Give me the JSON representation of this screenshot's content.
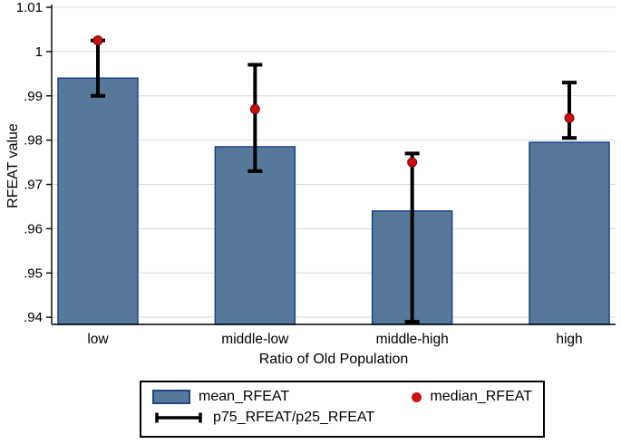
{
  "figure": {
    "background": "#ffffff"
  },
  "chart_data": {
    "type": "bar",
    "title": "",
    "xlabel": "Ratio of Old Population",
    "ylabel": "RFEAT value",
    "categories": [
      "low",
      "middle-low",
      "middle-high",
      "high"
    ],
    "series": [
      {
        "name": "mean_RFEAT",
        "kind": "bar",
        "values": [
          0.994,
          0.9785,
          0.964,
          0.9795
        ]
      },
      {
        "name": "median_RFEAT",
        "kind": "point",
        "values": [
          1.0025,
          0.987,
          0.975,
          0.985
        ]
      },
      {
        "name": "p75_RFEAT/p25_RFEAT",
        "kind": "range",
        "high": [
          1.0025,
          0.997,
          0.977,
          0.993
        ],
        "low": [
          0.99,
          0.973,
          0.939,
          0.9805
        ]
      }
    ],
    "ylim": [
      0.9384,
      1.01
    ],
    "yticks": [
      {
        "v": 0.94,
        "label": ".94"
      },
      {
        "v": 0.95,
        "label": ".95"
      },
      {
        "v": 0.96,
        "label": ".96"
      },
      {
        "v": 0.97,
        "label": ".97"
      },
      {
        "v": 0.98,
        "label": ".98"
      },
      {
        "v": 0.99,
        "label": ".99"
      },
      {
        "v": 1.0,
        "label": "1"
      },
      {
        "v": 1.01,
        "label": "1.01"
      }
    ],
    "grid": true,
    "legend_position": "bottom",
    "colors": {
      "bar_fill": "#55789b",
      "bar_border": "#1c4587",
      "error_bar": "#000000",
      "median_point": "#cc1111",
      "median_edge": "#7a0000",
      "grid": "#d9d9d9",
      "axis": "#000000",
      "legend_border": "#000000"
    }
  }
}
